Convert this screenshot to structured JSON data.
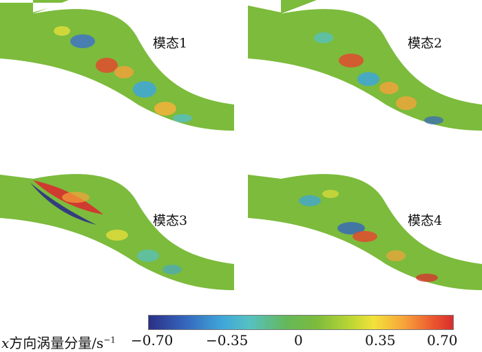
{
  "figure": {
    "panels": [
      {
        "label": "模态1"
      },
      {
        "label": "模态2"
      },
      {
        "label": "模态3"
      },
      {
        "label": "模态4"
      }
    ],
    "colorbar": {
      "variable": "x",
      "title_rest": "方向涡量分量/s",
      "title_sup": "−1",
      "ticks": [
        "−0.70",
        "−0.35",
        "0",
        "0.35",
        "0.70"
      ],
      "range": [
        -0.7,
        0.7
      ]
    },
    "colors": {
      "background": "#7cbb3c",
      "neg_strong": "#2b2f86",
      "neg_mid": "#3fa6d9",
      "pos_mid": "#f3e23a",
      "pos_strong": "#d92d2d"
    }
  }
}
